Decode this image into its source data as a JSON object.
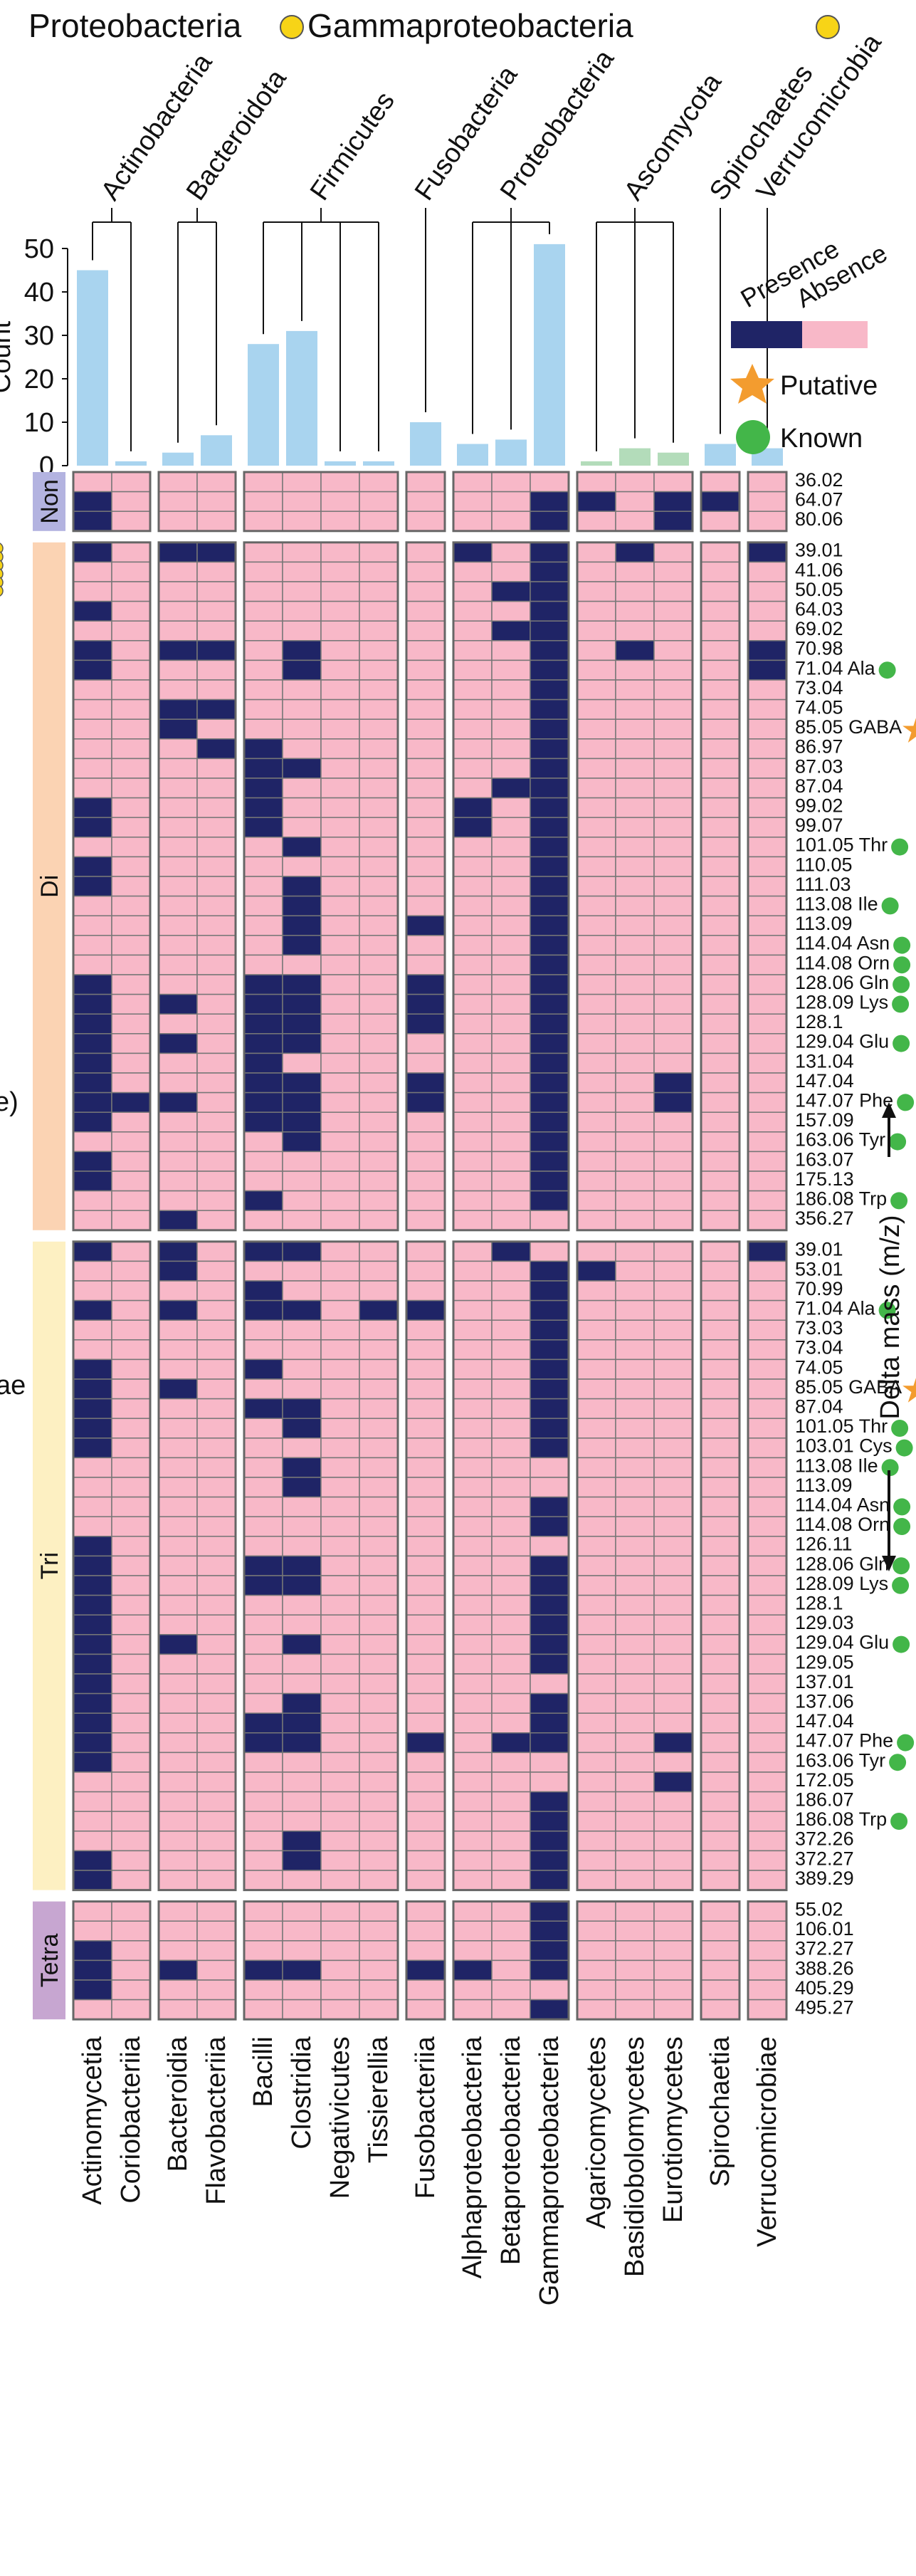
{
  "chart_data": {
    "type": "heatmap",
    "top_labels": [
      "Proteobacteria",
      "Gammaproteobacteria"
    ],
    "count_axis": {
      "label": "Count",
      "ticks": [
        0,
        10,
        20,
        30,
        40,
        50
      ],
      "ylim": [
        0,
        50
      ]
    },
    "phyla": [
      {
        "name": "Actinobacteria",
        "classes": [
          0,
          1
        ]
      },
      {
        "name": "Bacteroidota",
        "classes": [
          2,
          3
        ]
      },
      {
        "name": "Firmicutes",
        "classes": [
          4,
          5,
          6,
          7
        ]
      },
      {
        "name": "Fusobacteria",
        "classes": [
          8
        ]
      },
      {
        "name": "Proteobacteria",
        "classes": [
          9,
          10,
          11
        ]
      },
      {
        "name": "Ascomycota",
        "classes": [
          12,
          13,
          14
        ]
      },
      {
        "name": "Spirochaetes",
        "classes": [
          15
        ]
      },
      {
        "name": "Verrucomicrobia",
        "classes": [
          16
        ]
      }
    ],
    "classes": [
      "Actinomycetia",
      "Coriobacteriia",
      "Bacteroidia",
      "Flavobacteriia",
      "Bacilli",
      "Clostridia",
      "Negativicutes",
      "Tissierellia",
      "Fusobacteriia",
      "Alphaproteobacteria",
      "Betaproteobacteria",
      "Gammaproteobacteria",
      "Agaricomycetes",
      "Basidiobolomycetes",
      "Eurotiomycetes",
      "Spirochaetia",
      "Verrucomicrobiae"
    ],
    "counts": [
      45,
      1,
      3,
      7,
      28,
      31,
      1,
      1,
      10,
      5,
      6,
      51,
      1,
      4,
      3,
      5,
      4
    ],
    "bar_colors": [
      "#a9d4ef",
      "#a9d4ef",
      "#a9d4ef",
      "#a9d4ef",
      "#a9d4ef",
      "#a9d4ef",
      "#a9d4ef",
      "#a9d4ef",
      "#a9d4ef",
      "#a9d4ef",
      "#a9d4ef",
      "#a9d4ef",
      "#b3dcba",
      "#b3dcba",
      "#b3dcba",
      "#a9d4ef",
      "#a9d4ef"
    ],
    "groups": [
      {
        "name": "Non",
        "color": "#b3b3e0",
        "masses": [
          "36.02",
          "64.07",
          "80.06"
        ],
        "cells": [
          "00000000000000000",
          "10000000000110110",
          "10000000000100100"
        ]
      },
      {
        "name": "Di",
        "color": "#fbd3b3",
        "masses": [
          "39.01",
          "41.06",
          "50.05",
          "64.03",
          "69.02",
          "70.98",
          "71.04 Ala",
          "73.04",
          "74.05",
          "85.05 GABA",
          "86.97",
          "87.03",
          "87.04",
          "99.02",
          "99.07",
          "101.05 Thr",
          "110.05",
          "111.03",
          "113.08 Ile",
          "113.09",
          "114.04 Asn",
          "114.08 Orn",
          "128.06 Gln",
          "128.09 Lys",
          "128.1",
          "129.04 Glu",
          "131.04",
          "147.04",
          "147.07 Phe",
          "157.09",
          "163.06 Tyr",
          "163.07",
          "175.13",
          "186.08 Trp",
          "356.27"
        ],
        "cells": [
          "10110000010101001",
          "00000000000100000",
          "00000000001100000",
          "10000000000100000",
          "00000000001100000",
          "10110100000101001",
          "10000100000100001",
          "00000000000100000",
          "00110000000100000",
          "00100000000100000",
          "00011000000100000",
          "00001100000100000",
          "00001000001100000",
          "10001000010100000",
          "10001000010100000",
          "00000100000100000",
          "10000000000100000",
          "10000100000100000",
          "00000100000100000",
          "00000100100100000",
          "00000100000100000",
          "00000000000100000",
          "10001100100100000",
          "10101100100100000",
          "10001100100100000",
          "10101100000100000",
          "10001000000100000",
          "10001100100100100",
          "11101100100100100",
          "10001100000100000",
          "00000100000100000",
          "10000000000100000",
          "10000000000100000",
          "00001000000100000",
          "00100000000000000"
        ]
      },
      {
        "name": "Tri",
        "color": "#fdf0c2",
        "masses": [
          "39.01",
          "53.01",
          "70.99",
          "71.04 Ala",
          "73.03",
          "73.04",
          "74.05",
          "85.05 GABA",
          "87.04",
          "101.05 Thr",
          "103.01 Cys",
          "113.08 Ile",
          "113.09",
          "114.04 Asn",
          "114.08 Orn",
          "126.11",
          "128.06 Gln",
          "128.09 Lys",
          "128.1",
          "129.03",
          "129.04 Glu",
          "129.05",
          "137.01",
          "137.06",
          "147.04",
          "147.07 Phe",
          "163.06 Tyr",
          "172.05",
          "186.07",
          "186.08 Trp",
          "372.26",
          "372.27",
          "389.29"
        ],
        "cells": [
          "10101100001000001",
          "00100000000110000",
          "00001000000100000",
          "10101101100100000",
          "00000000000100000",
          "00000000000100000",
          "10001000000100000",
          "10100000000100000",
          "10001100000100000",
          "10000100000100000",
          "10000000000100000",
          "00000100000000000",
          "00000100000000000",
          "00000000000100000",
          "00000000000100000",
          "10000000000000000",
          "10001100000100000",
          "10001100000100000",
          "10000000000100000",
          "10000000000100000",
          "10100100000100000",
          "10000000000100000",
          "10000000000000000",
          "10000100000100000",
          "10001100000100000",
          "10001100101100100",
          "10000000000000000",
          "00000000000000100",
          "00000000000100000",
          "00000000000100000",
          "00000100000100000",
          "10000100000100000",
          "10000000000100000"
        ]
      },
      {
        "name": "Tetra",
        "color": "#c7a6d1",
        "masses": [
          "55.02",
          "106.01",
          "372.27",
          "388.26",
          "405.29",
          "495.27"
        ],
        "cells": [
          "00000000000100000",
          "00000000000100000",
          "10000000000100000",
          "10101100110100000",
          "10000000000000000",
          "00000000000100000"
        ]
      }
    ],
    "legend": {
      "presence": "Presence",
      "absence": "Absence",
      "putative": "Putative",
      "known": "Known",
      "presence_color": "#1f2466",
      "absence_color": "#f8b8c8",
      "putative_color": "#f39c2f",
      "known_color": "#43b649"
    },
    "markers": {
      "putative": [
        "85.05 GABA"
      ],
      "known": [
        "71.04 Ala",
        "101.05 Thr",
        "103.01 Cys",
        "113.08 Ile",
        "114.04 Asn",
        "114.08 Orn",
        "128.06 Gln",
        "128.09 Lys",
        "129.04 Glu",
        "147.07 Phe",
        "163.06 Tyr",
        "186.08 Trp"
      ]
    },
    "side_axis_label": "Delta mass (m/z)",
    "left_cut_labels": [
      "e)",
      "ae"
    ]
  }
}
